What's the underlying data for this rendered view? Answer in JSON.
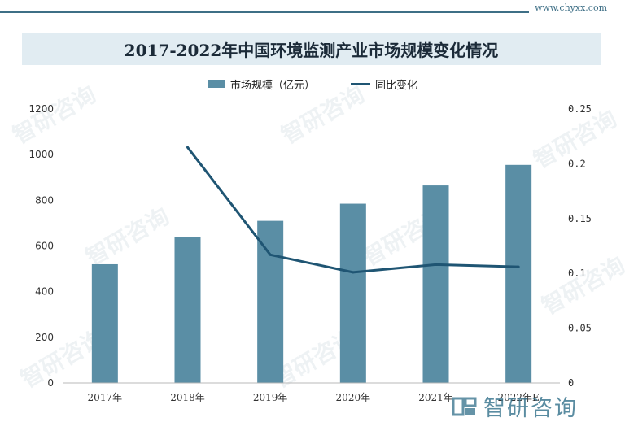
{
  "site": "www.chyxx.com",
  "watermark": "智研咨询",
  "chart_data": {
    "type": "bar",
    "title": "2017-2022年中国环境监测产业市场规模变化情况",
    "categories": [
      "2017年",
      "2018年",
      "2019年",
      "2020年",
      "2021年",
      "2022年E"
    ],
    "series": [
      {
        "name": "市场规模（亿元）",
        "type": "bar",
        "axis": "left",
        "color": "#5a8ea5",
        "values": [
          520,
          640,
          710,
          785,
          865,
          955
        ]
      },
      {
        "name": "同比变化",
        "type": "line",
        "axis": "right",
        "color": "#1f5573",
        "values": [
          null,
          0.215,
          0.117,
          0.101,
          0.108,
          0.106
        ]
      }
    ],
    "y_left": {
      "ylim": [
        0,
        1200
      ],
      "ticks": [
        "0",
        "200",
        "400",
        "600",
        "800",
        "1000",
        "1200"
      ]
    },
    "y_right": {
      "ylim": [
        0,
        0.25
      ],
      "ticks": [
        "0",
        "0.05",
        "0.1",
        "0.15",
        "0.2",
        "0.25"
      ]
    },
    "grid": false,
    "legend": "top-center"
  }
}
